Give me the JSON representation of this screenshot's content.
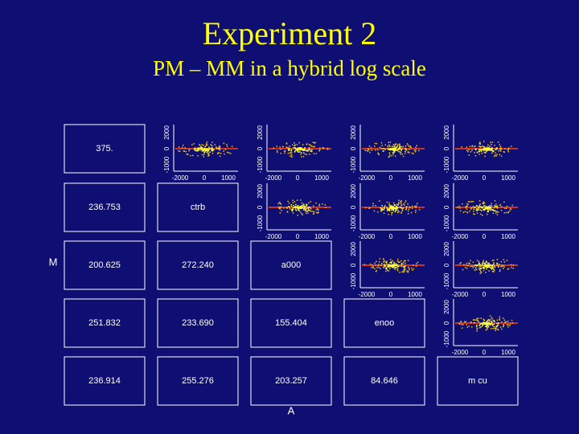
{
  "header": {
    "title": "Experiment 2",
    "subtitle": "PM – MM in a hybrid log scale"
  },
  "axes": {
    "y_label": "M",
    "x_label": "A",
    "x_ticks": [
      "-2000",
      "0",
      "1000"
    ],
    "y_ticks": [
      "-1000",
      "0",
      "2000"
    ]
  },
  "matrix": {
    "diagonal": [
      "375.",
      "ctrb",
      "a000",
      "enoo",
      "m cu"
    ],
    "lower": [
      [],
      [
        "236.753"
      ],
      [
        "200.625",
        "272.240"
      ],
      [
        "251.832",
        "233.690",
        "155.404"
      ],
      [
        "236.914",
        "255.276",
        "203.257",
        "84.646"
      ]
    ]
  }
}
